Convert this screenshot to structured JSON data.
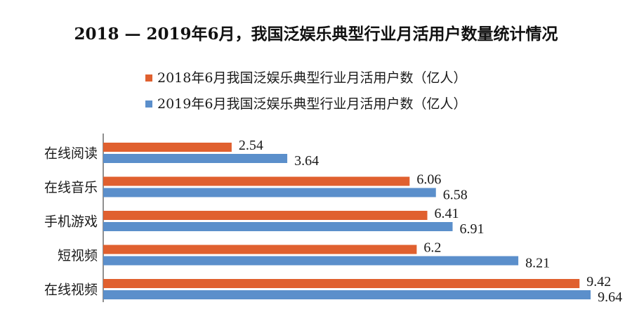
{
  "chart_data": {
    "type": "bar",
    "orientation": "horizontal",
    "title": "2018 — 2019年6月，我国泛娱乐典型行业月活用户数量统计情况",
    "categories": [
      "在线阅读",
      "在线音乐",
      "手机游戏",
      "短视频",
      "在线视频"
    ],
    "series": [
      {
        "name": "2018年6月我国泛娱乐典型行业月活用户数（亿人）",
        "color": "#E0602F",
        "values": [
          2.54,
          6.06,
          6.41,
          6.2,
          9.42
        ]
      },
      {
        "name": "2019年6月我国泛娱乐典型行业月活用户数（亿人）",
        "color": "#5B8FCB",
        "values": [
          3.64,
          6.58,
          6.91,
          8.21,
          9.64
        ]
      }
    ],
    "value_labels": [
      [
        "2.54",
        "6.06",
        "6.41",
        "6.2",
        "9.42"
      ],
      [
        "3.64",
        "6.58",
        "6.91",
        "8.21",
        "9.64"
      ]
    ],
    "xlim": [
      0,
      10
    ],
    "grid": false,
    "legend_position": "top"
  }
}
